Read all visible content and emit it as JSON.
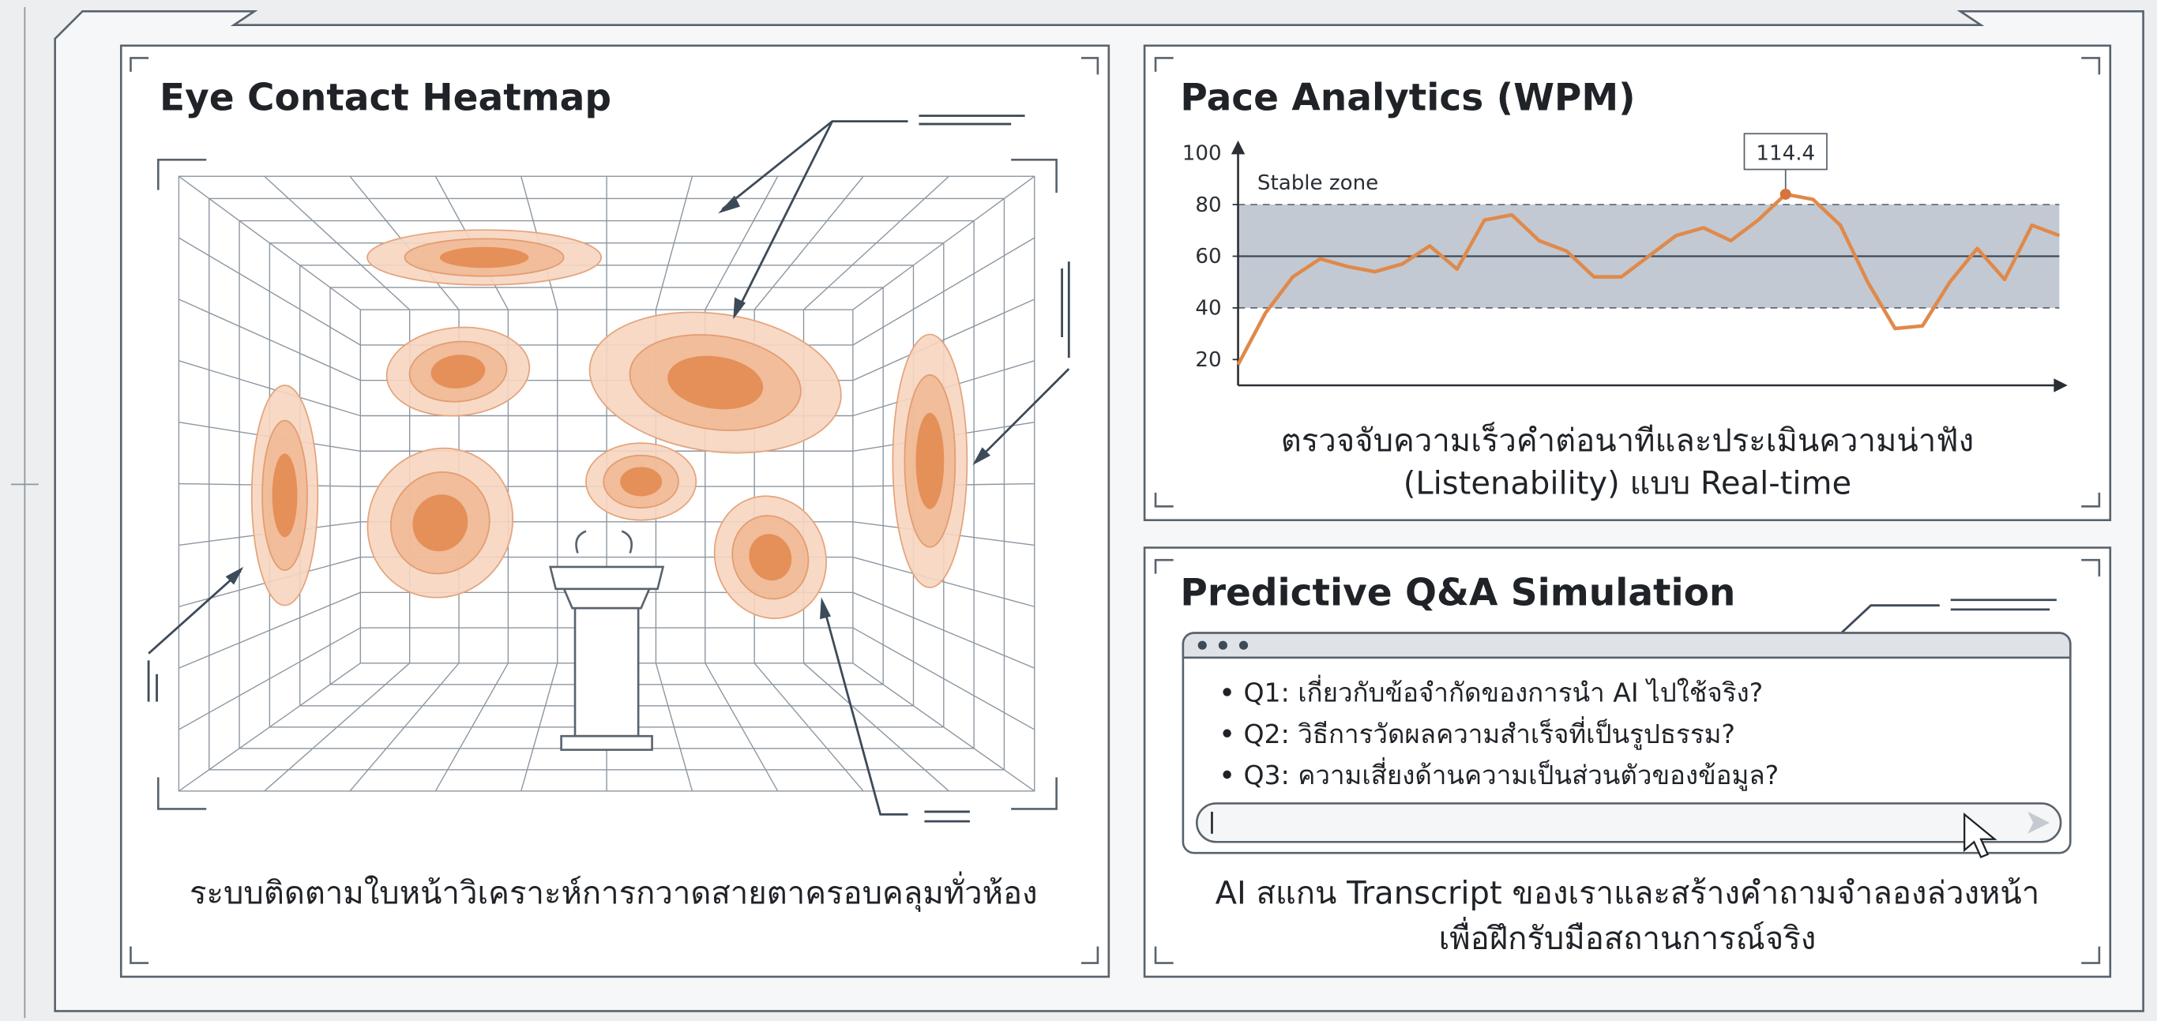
{
  "heatmap_panel": {
    "title": "Eye Contact Heatmap",
    "caption": "ระบบติดตามใบหน้าวิเคราะห์การกวาดสายตาครอบคลุมทั่วห้อง"
  },
  "chart_data": {
    "type": "line",
    "title": "Pace Analytics (WPM)",
    "zone_label": "Stable zone",
    "annotation": "114.4",
    "caption": [
      "ตรวจจับความเร็วคำต่อนาทีและประเมินความน่าฟัง",
      "(Listenability) แบบ Real-time"
    ],
    "values": [
      18,
      38,
      52,
      59,
      56,
      54,
      57,
      64,
      55,
      74,
      76,
      66,
      62,
      52,
      52,
      60,
      68,
      71,
      66,
      74,
      84,
      82,
      72,
      50,
      32,
      33,
      50,
      63,
      51,
      72,
      68
    ],
    "color": "#e0894a",
    "ylim": [
      10,
      100
    ],
    "yticks": [
      20,
      40,
      60,
      80,
      100
    ],
    "zone": [
      40,
      80
    ],
    "centerline": 60
  },
  "qa_panel": {
    "title": "Predictive Q&A Simulation",
    "questions": [
      "Q1: เกี่ยวกับข้อจำกัดของการนำ AI ไปใช้จริง?",
      "Q2: วิธีการวัดผลความสำเร็จที่เป็นรูปธรรม?",
      "Q3: ความเสี่ยงด้านความเป็นส่วนตัวของข้อมูล?"
    ],
    "caption": [
      "AI สแกน Transcript ของเราและสร้างคำถามจำลองล่วงหน้า",
      "เพื่อฝึกรับมือสถานการณ์จริง"
    ]
  }
}
